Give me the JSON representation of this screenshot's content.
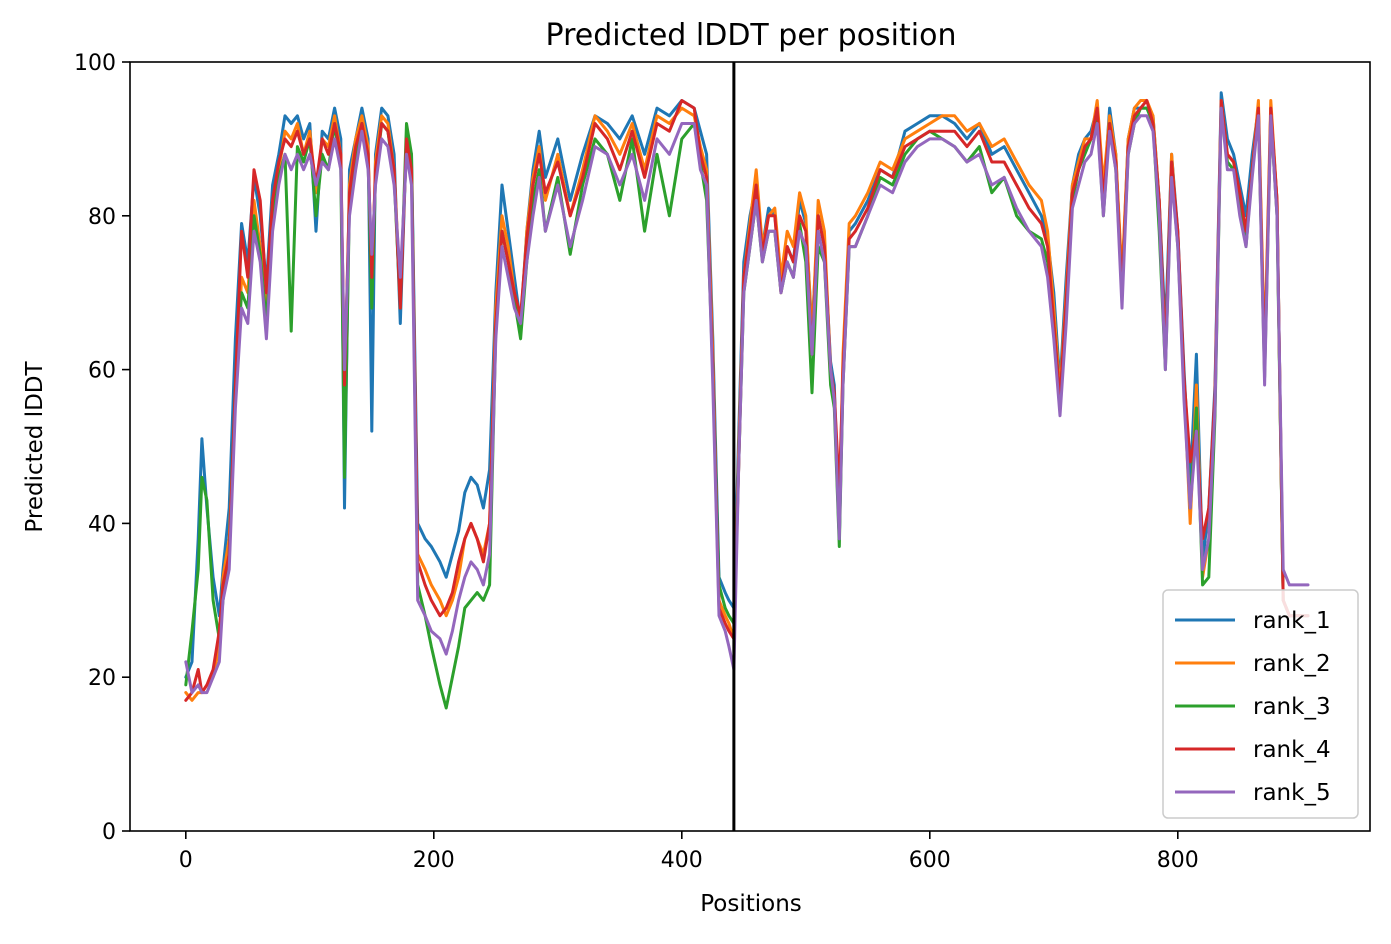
{
  "chart_data": {
    "type": "line",
    "title": "Predicted lDDT per position",
    "xlabel": "Positions",
    "ylabel": "Predicted lDDT",
    "xlim": [
      -45,
      955
    ],
    "ylim": [
      0,
      100
    ],
    "xticks": [
      0,
      200,
      400,
      600,
      800
    ],
    "yticks": [
      0,
      20,
      40,
      60,
      80,
      100
    ],
    "xtick_labels": [
      "0",
      "200",
      "400",
      "600",
      "800"
    ],
    "ytick_labels": [
      "0",
      "20",
      "40",
      "60",
      "80",
      "100"
    ],
    "vline_x": 442,
    "grid": false,
    "legend_position": "lower-right",
    "x": [
      0,
      5,
      10,
      13,
      17,
      22,
      27,
      30,
      35,
      40,
      45,
      50,
      55,
      60,
      65,
      70,
      75,
      80,
      85,
      90,
      95,
      100,
      105,
      110,
      115,
      120,
      125,
      128,
      132,
      137,
      142,
      147,
      150,
      153,
      158,
      163,
      168,
      173,
      178,
      182,
      187,
      193,
      198,
      205,
      210,
      215,
      220,
      225,
      230,
      235,
      240,
      245,
      250,
      255,
      260,
      265,
      270,
      275,
      280,
      285,
      290,
      300,
      310,
      320,
      330,
      340,
      350,
      360,
      370,
      380,
      390,
      400,
      410,
      415,
      420,
      425,
      430,
      435,
      438,
      442,
      446,
      450,
      455,
      460,
      465,
      470,
      475,
      480,
      485,
      490,
      495,
      500,
      505,
      510,
      515,
      520,
      523,
      527,
      530,
      535,
      540,
      550,
      560,
      570,
      580,
      590,
      600,
      610,
      620,
      630,
      640,
      650,
      660,
      670,
      680,
      690,
      695,
      700,
      705,
      710,
      715,
      720,
      725,
      730,
      735,
      740,
      745,
      750,
      755,
      760,
      765,
      770,
      775,
      780,
      785,
      790,
      795,
      800,
      805,
      810,
      815,
      820,
      825,
      830,
      835,
      840,
      845,
      850,
      855,
      860,
      865,
      870,
      875,
      880,
      885,
      890,
      895,
      900,
      905
    ],
    "series": [
      {
        "name": "rank_1",
        "color": "#1f77b4",
        "values": [
          20,
          22,
          38,
          51,
          42,
          33,
          28,
          34,
          42,
          64,
          79,
          74,
          85,
          80,
          71,
          84,
          88,
          93,
          92,
          93,
          90,
          92,
          78,
          91,
          90,
          94,
          90,
          42,
          86,
          90,
          94,
          90,
          52,
          88,
          94,
          93,
          88,
          66,
          90,
          88,
          40,
          38,
          37,
          35,
          33,
          36,
          39,
          44,
          46,
          45,
          42,
          47,
          70,
          84,
          78,
          72,
          66,
          78,
          86,
          91,
          85,
          90,
          82,
          88,
          93,
          92,
          90,
          93,
          88,
          94,
          93,
          95,
          94,
          91,
          88,
          64,
          33,
          31,
          30,
          29,
          52,
          74,
          80,
          84,
          76,
          81,
          80,
          72,
          76,
          74,
          82,
          79,
          65,
          80,
          76,
          61,
          58,
          38,
          60,
          78,
          79,
          82,
          86,
          85,
          91,
          92,
          93,
          93,
          92,
          90,
          92,
          88,
          89,
          86,
          83,
          80,
          77,
          70,
          58,
          72,
          84,
          88,
          90,
          91,
          94,
          82,
          94,
          88,
          71,
          90,
          94,
          94,
          94,
          93,
          82,
          65,
          88,
          78,
          60,
          45,
          62,
          35,
          42,
          58,
          96,
          90,
          88,
          84,
          80,
          88,
          94,
          60,
          94,
          82,
          30,
          28,
          28,
          28,
          28
        ],
        "outline": [
          20,
          22,
          38,
          51,
          42,
          33,
          28,
          34,
          42,
          64,
          79,
          74,
          85,
          80,
          71,
          84,
          88,
          93,
          92,
          93,
          90,
          92,
          78,
          91,
          90,
          94,
          90,
          42,
          86,
          90,
          94,
          90,
          52,
          88,
          94,
          93,
          88,
          66,
          90,
          88,
          40,
          38,
          37,
          35,
          33,
          36,
          39,
          44,
          46,
          45,
          42,
          47,
          70,
          84,
          78,
          72,
          66,
          78,
          86,
          91,
          85,
          90,
          82,
          88,
          93,
          92,
          90,
          93,
          88,
          94,
          93,
          95,
          94,
          91,
          88,
          64,
          33,
          31,
          30,
          29,
          52,
          74,
          80,
          84,
          76,
          81,
          80,
          72,
          76,
          74,
          82,
          79,
          65,
          80,
          76,
          61,
          58,
          38,
          60,
          78,
          79,
          82,
          86,
          85,
          91,
          92,
          93,
          93,
          92,
          90,
          92,
          88,
          89,
          86,
          83,
          80,
          77,
          70,
          58,
          72,
          84,
          88,
          90,
          91,
          94,
          82,
          94,
          88,
          71,
          90,
          94,
          94,
          94,
          93,
          82,
          65,
          88,
          78,
          60,
          45,
          62,
          35,
          42,
          58,
          96,
          90,
          88,
          84,
          80,
          88,
          94,
          60,
          94,
          82,
          30,
          28,
          28,
          28,
          28
        ]
      },
      {
        "name": "rank_2",
        "color": "#ff7f0e",
        "values": [
          18,
          17,
          18,
          18,
          19,
          20,
          24,
          33,
          38,
          56,
          72,
          70,
          82,
          76,
          68,
          82,
          86,
          91,
          90,
          92,
          88,
          91,
          83,
          90,
          89,
          93,
          88,
          55,
          84,
          90,
          93,
          89,
          70,
          87,
          93,
          92,
          86,
          70,
          89,
          86,
          36,
          34,
          32,
          30,
          28,
          30,
          33,
          38,
          40,
          38,
          36,
          40,
          68,
          80,
          76,
          70,
          65,
          78,
          85,
          89,
          82,
          88,
          80,
          86,
          93,
          91,
          88,
          92,
          86,
          93,
          92,
          94,
          93,
          89,
          86,
          62,
          30,
          28,
          27,
          25,
          50,
          72,
          79,
          86,
          76,
          80,
          81,
          72,
          78,
          76,
          83,
          80,
          64,
          82,
          78,
          60,
          56,
          40,
          62,
          79,
          80,
          83,
          87,
          86,
          90,
          91,
          92,
          93,
          93,
          91,
          92,
          89,
          90,
          87,
          84,
          82,
          78,
          68,
          57,
          70,
          84,
          87,
          90,
          90,
          95,
          84,
          93,
          88,
          72,
          90,
          94,
          95,
          95,
          93,
          82,
          62,
          88,
          77,
          58,
          40,
          58,
          33,
          38,
          56,
          95,
          88,
          87,
          82,
          78,
          86,
          95,
          62,
          95,
          82,
          30,
          28,
          28,
          28,
          28
        ]
      },
      {
        "name": "rank_3",
        "color": "#2ca02c",
        "values": [
          19,
          26,
          34,
          46,
          43,
          30,
          25,
          30,
          36,
          58,
          70,
          68,
          80,
          75,
          66,
          80,
          85,
          88,
          65,
          89,
          87,
          90,
          80,
          88,
          86,
          92,
          86,
          46,
          82,
          88,
          92,
          87,
          68,
          85,
          92,
          91,
          85,
          68,
          92,
          88,
          32,
          28,
          24,
          19,
          16,
          20,
          24,
          29,
          30,
          31,
          30,
          32,
          65,
          78,
          74,
          69,
          64,
          74,
          82,
          86,
          78,
          85,
          75,
          84,
          90,
          88,
          82,
          90,
          78,
          88,
          80,
          90,
          92,
          87,
          82,
          60,
          32,
          29,
          28,
          27,
          48,
          70,
          76,
          82,
          74,
          78,
          78,
          70,
          74,
          72,
          79,
          74,
          57,
          76,
          74,
          58,
          55,
          37,
          58,
          76,
          76,
          80,
          85,
          84,
          88,
          90,
          91,
          90,
          89,
          87,
          89,
          83,
          85,
          80,
          78,
          77,
          74,
          66,
          56,
          68,
          82,
          86,
          88,
          90,
          93,
          80,
          92,
          86,
          70,
          88,
          92,
          94,
          94,
          92,
          78,
          60,
          86,
          76,
          58,
          42,
          55,
          32,
          33,
          54,
          94,
          87,
          86,
          82,
          76,
          86,
          93,
          59,
          93,
          80,
          30,
          28,
          28,
          28,
          28
        ]
      },
      {
        "name": "rank_4",
        "color": "#d62728",
        "values": [
          17,
          18,
          21,
          18,
          19,
          21,
          26,
          32,
          36,
          58,
          78,
          72,
          86,
          82,
          70,
          82,
          87,
          90,
          89,
          91,
          88,
          90,
          84,
          90,
          88,
          92,
          88,
          58,
          83,
          89,
          92,
          88,
          72,
          86,
          92,
          91,
          86,
          68,
          90,
          86,
          35,
          32,
          30,
          28,
          29,
          31,
          35,
          38,
          40,
          38,
          35,
          40,
          66,
          78,
          74,
          70,
          67,
          77,
          84,
          88,
          83,
          87,
          80,
          85,
          92,
          90,
          86,
          91,
          85,
          92,
          91,
          95,
          94,
          88,
          85,
          60,
          29,
          27,
          26,
          25,
          48,
          72,
          78,
          84,
          75,
          80,
          80,
          70,
          76,
          74,
          80,
          78,
          62,
          80,
          76,
          60,
          57,
          44,
          60,
          77,
          78,
          81,
          86,
          85,
          89,
          90,
          91,
          91,
          91,
          89,
          91,
          87,
          87,
          84,
          81,
          79,
          76,
          66,
          56,
          69,
          83,
          86,
          89,
          90,
          94,
          82,
          92,
          87,
          70,
          89,
          93,
          94,
          95,
          92,
          82,
          62,
          87,
          78,
          59,
          48,
          52,
          38,
          42,
          57,
          95,
          88,
          87,
          83,
          78,
          86,
          94,
          60,
          94,
          82,
          30,
          28,
          28,
          28,
          28
        ]
      },
      {
        "name": "rank_5",
        "color": "#9467bd",
        "values": [
          22,
          18,
          19,
          18,
          18,
          20,
          22,
          30,
          34,
          55,
          68,
          66,
          78,
          74,
          64,
          78,
          84,
          88,
          86,
          88,
          86,
          88,
          84,
          87,
          86,
          90,
          86,
          60,
          80,
          86,
          91,
          86,
          75,
          84,
          90,
          89,
          84,
          72,
          88,
          84,
          30,
          28,
          26,
          25,
          23,
          26,
          30,
          33,
          35,
          34,
          32,
          36,
          64,
          76,
          72,
          68,
          66,
          74,
          80,
          85,
          78,
          84,
          76,
          82,
          89,
          88,
          84,
          88,
          82,
          90,
          88,
          92,
          92,
          86,
          84,
          58,
          28,
          26,
          24,
          21,
          48,
          70,
          76,
          82,
          74,
          78,
          78,
          70,
          74,
          72,
          78,
          76,
          62,
          78,
          74,
          60,
          56,
          38,
          58,
          76,
          76,
          80,
          84,
          83,
          87,
          89,
          90,
          90,
          89,
          87,
          88,
          84,
          85,
          81,
          78,
          76,
          72,
          64,
          54,
          66,
          81,
          84,
          87,
          88,
          92,
          80,
          91,
          86,
          68,
          88,
          92,
          93,
          93,
          91,
          80,
          60,
          85,
          76,
          56,
          42,
          52,
          34,
          38,
          55,
          94,
          86,
          86,
          80,
          76,
          85,
          93,
          58,
          93,
          80,
          34,
          32,
          32,
          32,
          32
        ]
      }
    ]
  }
}
